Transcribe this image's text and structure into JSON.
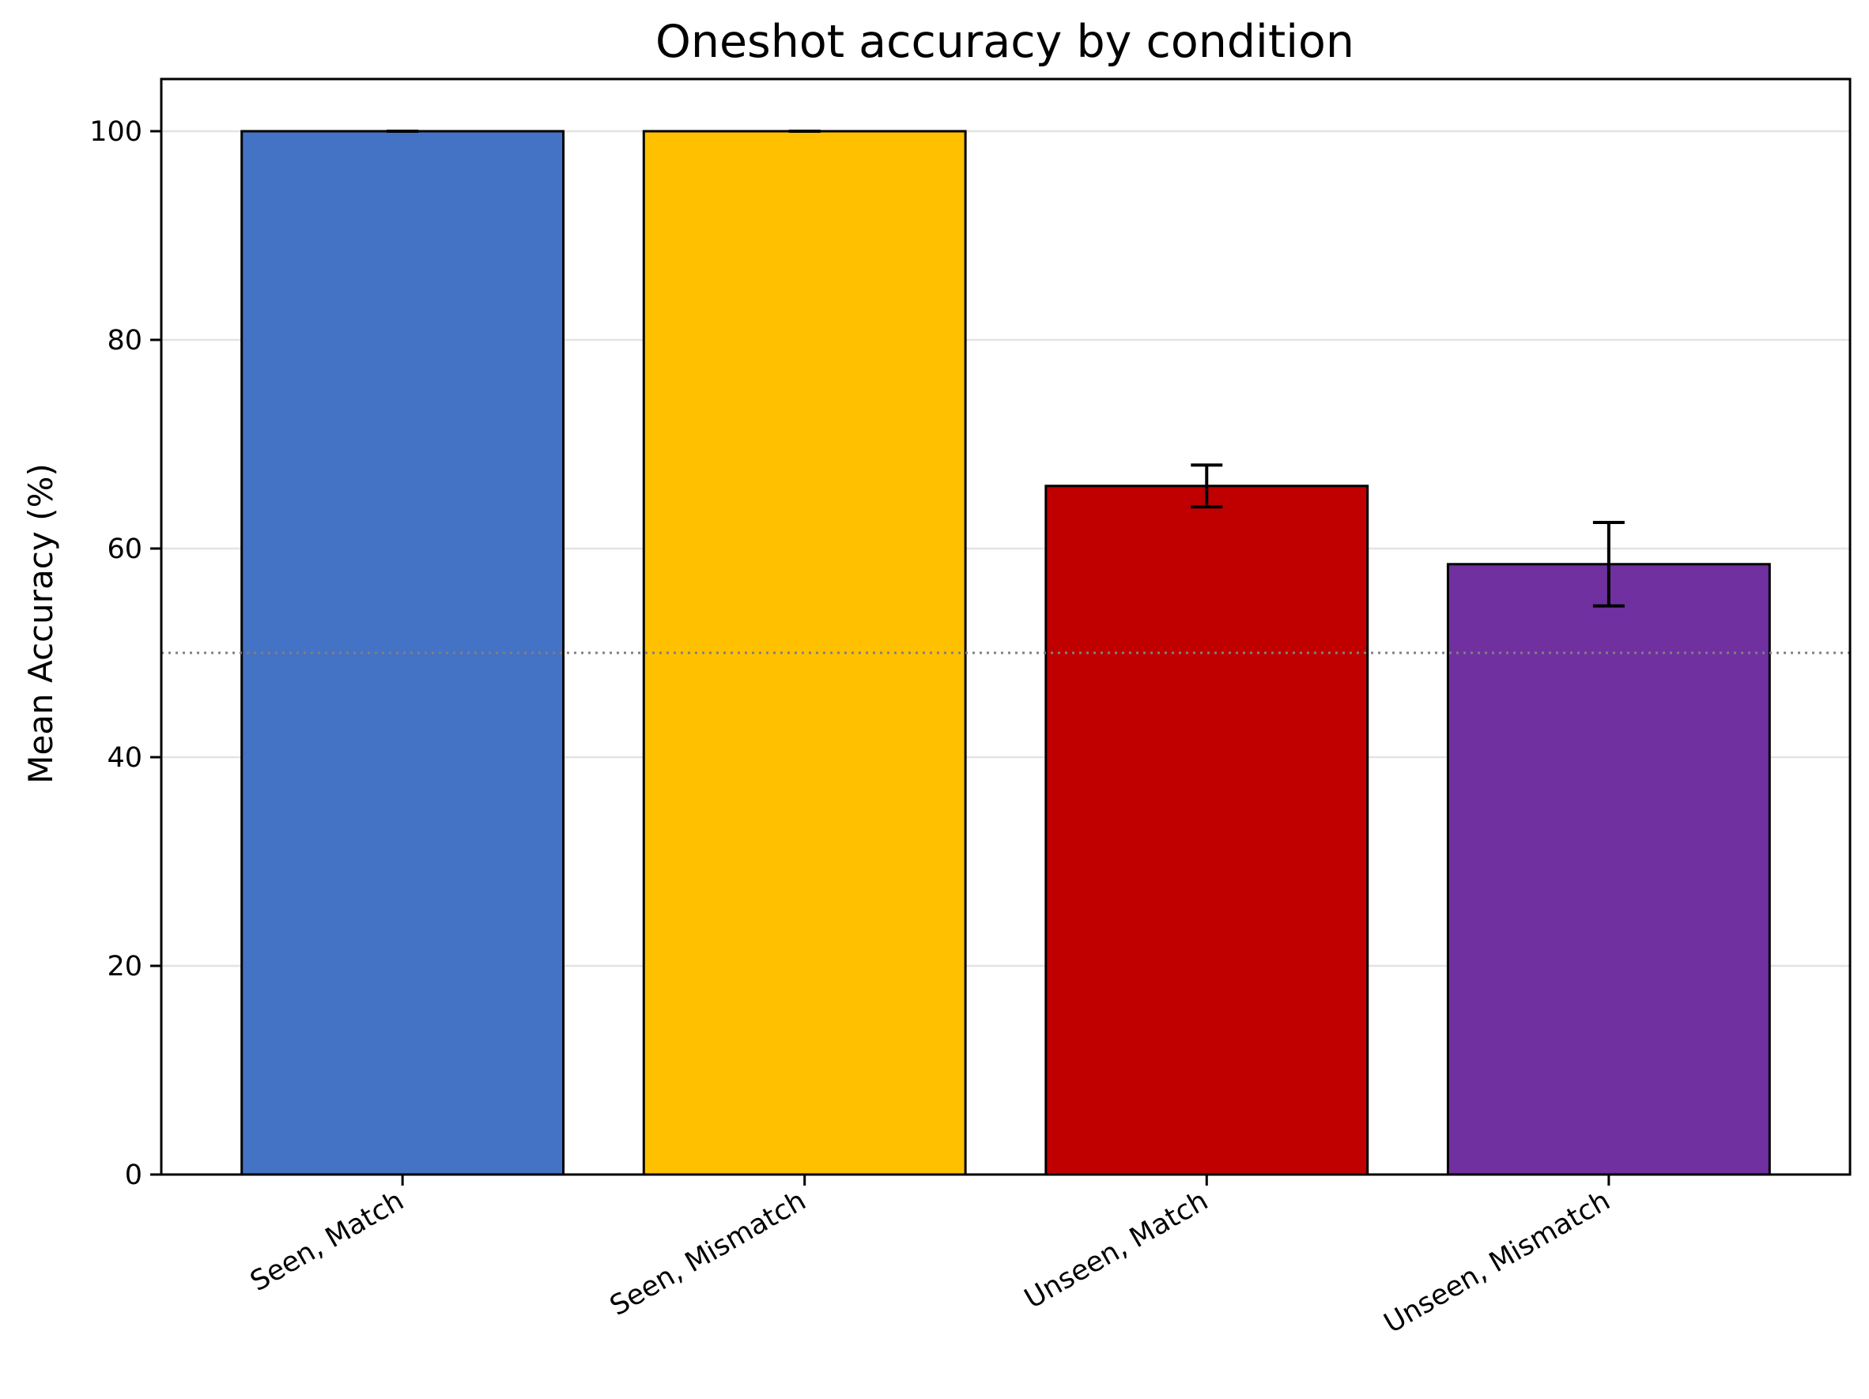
{
  "chart_data": {
    "type": "bar",
    "title": "Oneshot accuracy by condition",
    "xlabel": "",
    "ylabel": "Mean Accuracy (%)",
    "categories": [
      "Seen, Match",
      "Seen, Mismatch",
      "Unseen, Match",
      "Unseen, Mismatch"
    ],
    "values": [
      100,
      100,
      66,
      58.5
    ],
    "error": [
      0,
      0,
      2,
      4
    ],
    "colors": [
      "#4472c4",
      "#ffc000",
      "#c00000",
      "#7030a0"
    ],
    "ylim": [
      0,
      105
    ],
    "yticks": [
      0,
      20,
      40,
      60,
      80,
      100
    ],
    "reference_line": 50,
    "grid": "horizontal",
    "legend": "none"
  }
}
